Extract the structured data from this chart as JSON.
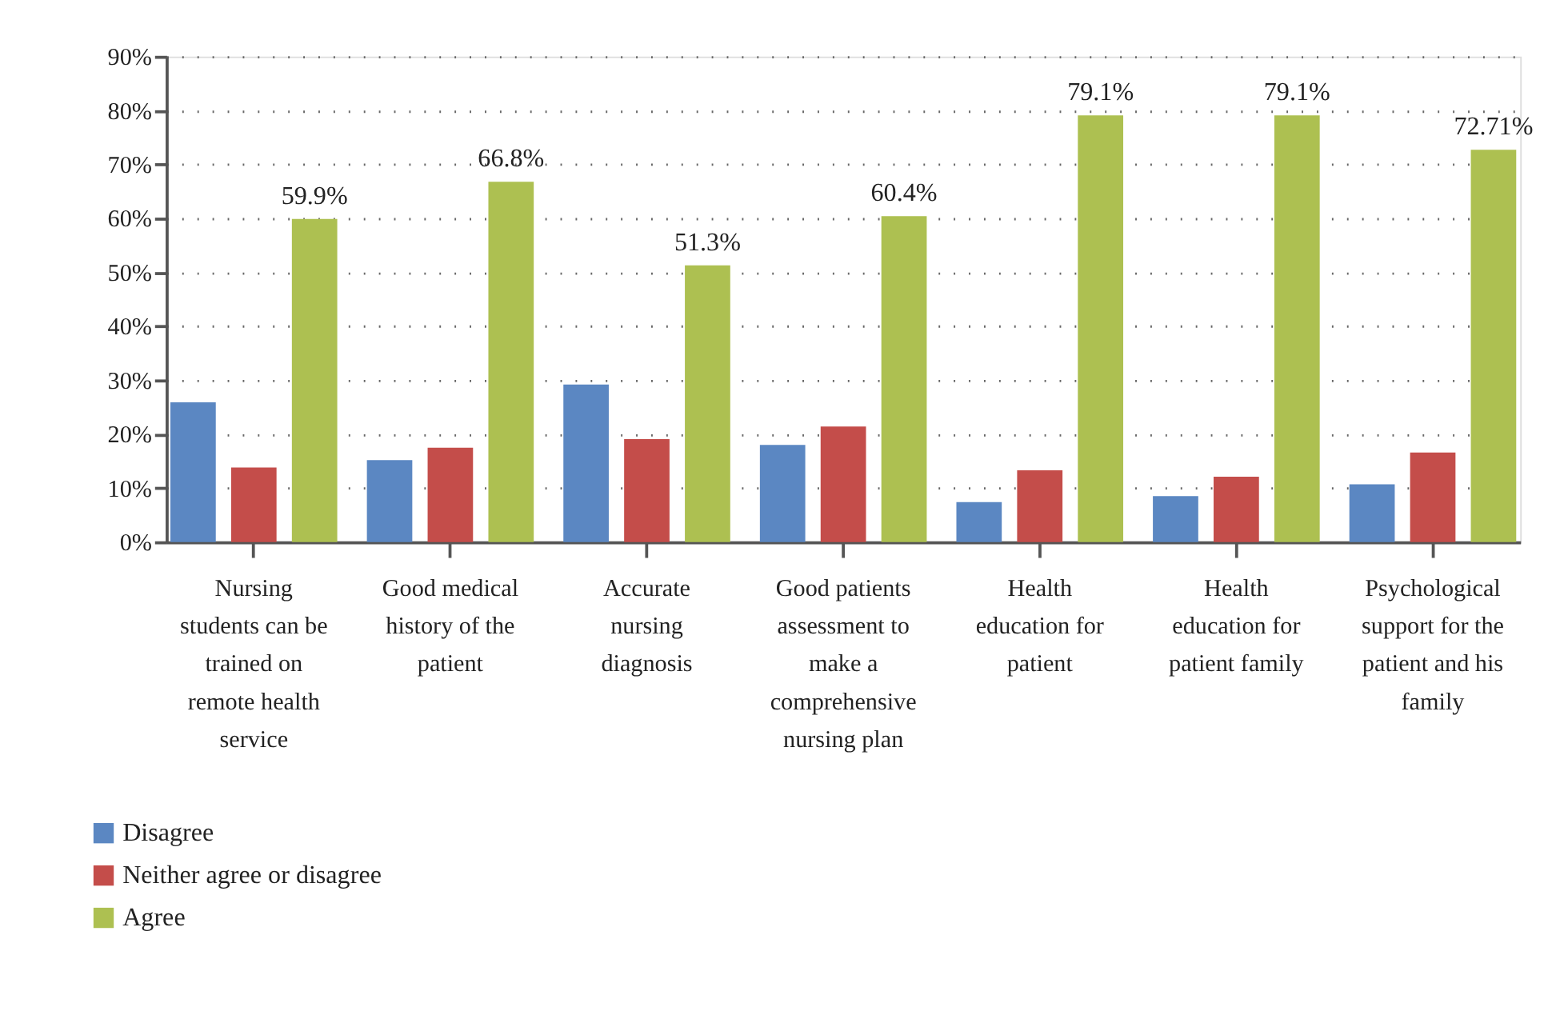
{
  "chart_data": {
    "type": "bar",
    "categories": [
      "Nursing students can be trained on remote health service",
      "Good medical history of the patient",
      "Accurate nursing diagnosis",
      "Good patients assessment to make a comprehensive nursing plan",
      "Health education for patient",
      "Health education for patient family",
      "Psychological support for the patient and his family"
    ],
    "series": [
      {
        "name": "Disagree",
        "color": "#5b87c2",
        "values": [
          25.9,
          15.2,
          29.2,
          18.0,
          7.4,
          8.5,
          10.7
        ]
      },
      {
        "name": "Neither agree or disagree",
        "color": "#c44d4a",
        "values": [
          13.8,
          17.5,
          19.1,
          21.4,
          13.3,
          12.1,
          16.6
        ]
      },
      {
        "name": "Agree",
        "color": "#adc051",
        "values": [
          59.9,
          66.8,
          51.3,
          60.4,
          79.1,
          79.1,
          72.71
        ],
        "value_labels": [
          "59.9%",
          "66.8%",
          "51.3%",
          "60.4%",
          "79.1%",
          "79.1%",
          "72.71%"
        ]
      }
    ],
    "ylim": [
      0,
      90
    ],
    "yticks": [
      {
        "value": 0,
        "label": "0%"
      },
      {
        "value": 10,
        "label": "10%"
      },
      {
        "value": 20,
        "label": "20%"
      },
      {
        "value": 30,
        "label": "30%"
      },
      {
        "value": 40,
        "label": "40%"
      },
      {
        "value": 50,
        "label": "50%"
      },
      {
        "value": 60,
        "label": "60%"
      },
      {
        "value": 70,
        "label": "70%"
      },
      {
        "value": 80,
        "label": "80%"
      },
      {
        "value": 90,
        "label": "90%"
      }
    ],
    "grid": "y",
    "legend": "bottom left"
  }
}
